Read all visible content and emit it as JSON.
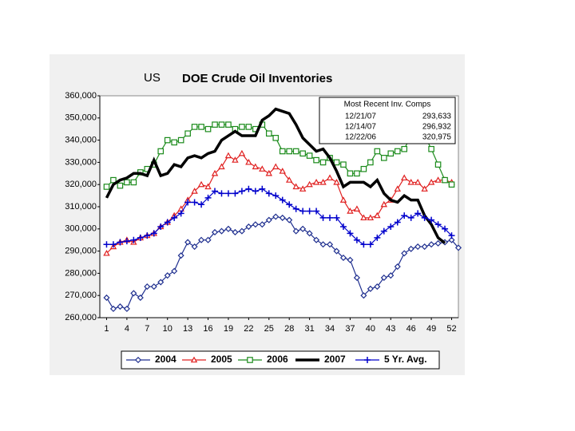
{
  "chart_data": {
    "type": "line",
    "region": "US",
    "title": "DOE Crude Oil Inventories",
    "x": [
      1,
      2,
      3,
      4,
      5,
      6,
      7,
      8,
      9,
      10,
      11,
      12,
      13,
      14,
      15,
      16,
      17,
      18,
      19,
      20,
      21,
      22,
      23,
      24,
      25,
      26,
      27,
      28,
      29,
      30,
      31,
      32,
      33,
      34,
      35,
      36,
      37,
      38,
      39,
      40,
      41,
      42,
      43,
      44,
      45,
      46,
      47,
      48,
      49,
      50,
      51,
      52,
      53
    ],
    "xlim": [
      0,
      53
    ],
    "xticks": [
      1,
      4,
      7,
      10,
      13,
      16,
      19,
      22,
      25,
      28,
      31,
      34,
      37,
      40,
      43,
      46,
      49,
      52
    ],
    "ylim": [
      260000,
      360000
    ],
    "yticks": [
      {
        "value": 260000,
        "label": "260,000"
      },
      {
        "value": 270000,
        "label": "270,000"
      },
      {
        "value": 280000,
        "label": "280,000"
      },
      {
        "value": 290000,
        "label": "290,000"
      },
      {
        "value": 300000,
        "label": "300,000"
      },
      {
        "value": 310000,
        "label": "310,000"
      },
      {
        "value": 320000,
        "label": "320,000"
      },
      {
        "value": 330000,
        "label": "330,000"
      },
      {
        "value": 340000,
        "label": "340,000"
      },
      {
        "value": 350000,
        "label": "350,000"
      },
      {
        "value": 360000,
        "label": "360,000"
      }
    ],
    "grid": false,
    "legend": "bottom",
    "series": [
      {
        "name": "2004",
        "color": "#1f2f8f",
        "marker": "diamond",
        "linewidth": 1.2,
        "values": [
          269000,
          264000,
          265000,
          264000,
          271000,
          269000,
          274000,
          274000,
          276000,
          279000,
          281000,
          288000,
          294000,
          292000,
          295000,
          295000,
          298500,
          299000,
          300000,
          298500,
          299000,
          301000,
          302000,
          302000,
          304000,
          305500,
          305000,
          304000,
          299000,
          300000,
          298000,
          295000,
          293000,
          293000,
          290000,
          287000,
          286000,
          278000,
          270000,
          273000,
          274000,
          278000,
          279000,
          283000,
          289000,
          291000,
          292000,
          292000,
          293000,
          293500,
          294000,
          295000,
          291500
        ]
      },
      {
        "name": "2005",
        "color": "#e02020",
        "marker": "triangle",
        "linewidth": 1.2,
        "values": [
          289000,
          292000,
          294000,
          295000,
          294000,
          296000,
          297000,
          298000,
          301000,
          303000,
          306000,
          309000,
          313000,
          317000,
          320000,
          319000,
          325000,
          328000,
          333000,
          331000,
          334000,
          330000,
          328000,
          327000,
          325000,
          328000,
          326000,
          322000,
          319000,
          318000,
          320000,
          321000,
          321000,
          323000,
          321000,
          313000,
          308000,
          309000,
          305000,
          305000,
          306000,
          311000,
          313000,
          318000,
          323000,
          321000,
          321000,
          318000,
          321000,
          322000,
          322000,
          321000,
          null
        ]
      },
      {
        "name": "2006",
        "color": "#1a8a1a",
        "marker": "square",
        "linewidth": 1.2,
        "values": [
          319000,
          322000,
          319500,
          321000,
          321000,
          325500,
          327000,
          329000,
          335000,
          340000,
          339000,
          340000,
          343000,
          346000,
          346000,
          345000,
          347000,
          347000,
          347000,
          345000,
          346000,
          346000,
          345000,
          347000,
          343000,
          341000,
          335000,
          335000,
          335000,
          334000,
          333000,
          331000,
          330000,
          332000,
          330000,
          329000,
          325000,
          325000,
          327000,
          330000,
          335000,
          332000,
          334000,
          335000,
          336000,
          342000,
          344000,
          342000,
          336000,
          329000,
          322000,
          320000,
          null
        ]
      },
      {
        "name": "2007",
        "color": "#000000",
        "marker": "none",
        "linewidth": 3.5,
        "values": [
          314000,
          320000,
          322000,
          323000,
          325000,
          325000,
          324000,
          331000,
          324000,
          325000,
          329000,
          328000,
          332000,
          333000,
          332000,
          334000,
          335000,
          340000,
          342000,
          344000,
          342000,
          342000,
          342000,
          349000,
          351000,
          354000,
          353000,
          352000,
          347000,
          341000,
          338000,
          335000,
          336000,
          332000,
          326000,
          319000,
          321000,
          321000,
          321000,
          319000,
          322000,
          316000,
          313000,
          312000,
          315000,
          313000,
          313000,
          306000,
          302000,
          296000,
          293633,
          null,
          null
        ]
      },
      {
        "name": "5  Yr. Avg.",
        "color": "#0000cc",
        "marker": "plus",
        "linewidth": 1.2,
        "values": [
          293000,
          293000,
          294000,
          294500,
          295000,
          296000,
          297000,
          298000,
          301000,
          303000,
          305000,
          307000,
          312000,
          312000,
          311000,
          314000,
          317000,
          316000,
          316000,
          316000,
          317000,
          318000,
          317000,
          318000,
          316000,
          315000,
          313000,
          311000,
          309000,
          308000,
          308000,
          308000,
          305000,
          305000,
          305000,
          301000,
          298000,
          295000,
          293000,
          293000,
          296000,
          299000,
          301000,
          303000,
          306000,
          305000,
          307000,
          305000,
          304000,
          302000,
          300000,
          297000,
          null
        ]
      }
    ],
    "inset": {
      "title": "Most Recent Inv. Comps",
      "rows": [
        [
          "12/21/07",
          "293,633"
        ],
        [
          "12/14/07",
          "296,932"
        ],
        [
          "12/22/06",
          "320,975"
        ]
      ]
    }
  }
}
